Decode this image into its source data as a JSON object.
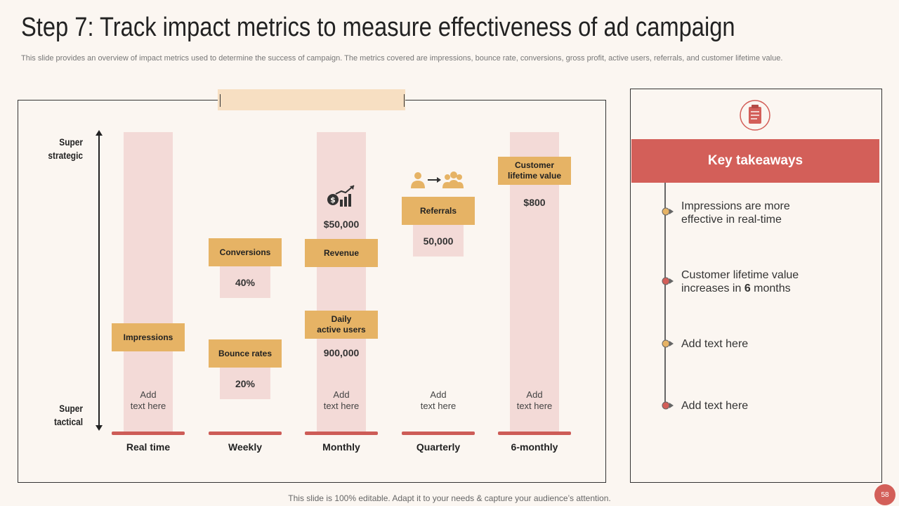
{
  "header": {
    "title": "Step 7: Track impact metrics to measure effectiveness of ad campaign",
    "subtitle": "This slide provides an overview of impact metrics used to determine the success of campaign. The metrics covered are impressions, bounce rate, conversions, gross profit, active users, referrals, and customer lifetime value."
  },
  "axis": {
    "top_label_line1": "Super",
    "top_label_line2": "strategic",
    "bottom_label_line1": "Super",
    "bottom_label_line2": "tactical"
  },
  "periods": [
    "Real time",
    "Weekly",
    "Monthly",
    "Quarterly",
    "6-monthly"
  ],
  "metrics": {
    "impressions": "Impressions",
    "conversions": "Conversions",
    "conversions_value": "40%",
    "bounce_rates": "Bounce rates",
    "bounce_rates_value": "20%",
    "revenue": "Revenue",
    "revenue_value": "$50,000",
    "daily_active_users_line1": "Daily",
    "daily_active_users_line2": "active users",
    "daily_active_users_value": "900,000",
    "referrals": "Referrals",
    "referrals_value": "50,000",
    "clv_line1": "Customer",
    "clv_line2": "lifetime value",
    "clv_value": "$800"
  },
  "placeholder": {
    "line1": "Add",
    "line2": "text here"
  },
  "key_takeaways": {
    "title": "Key takeaways",
    "item1_line1": "Impressions are more",
    "item1_line2": "effective in real-time",
    "item2_line1": "Customer lifetime value",
    "item2_line2_pre": "increases in ",
    "item2_line2_bold": "6",
    "item2_line2_post": " months",
    "item3": "Add text here",
    "item4": "Add text here"
  },
  "footer": {
    "note": "This slide is 100% editable. Adapt it to your needs & capture your audience’s attention.",
    "page_number": "58"
  },
  "colors": {
    "accent_red": "#d35f59",
    "gold": "#e6b365",
    "pink": "#f3dad7",
    "tab": "#f7dfc2",
    "background": "#fbf6f1"
  }
}
